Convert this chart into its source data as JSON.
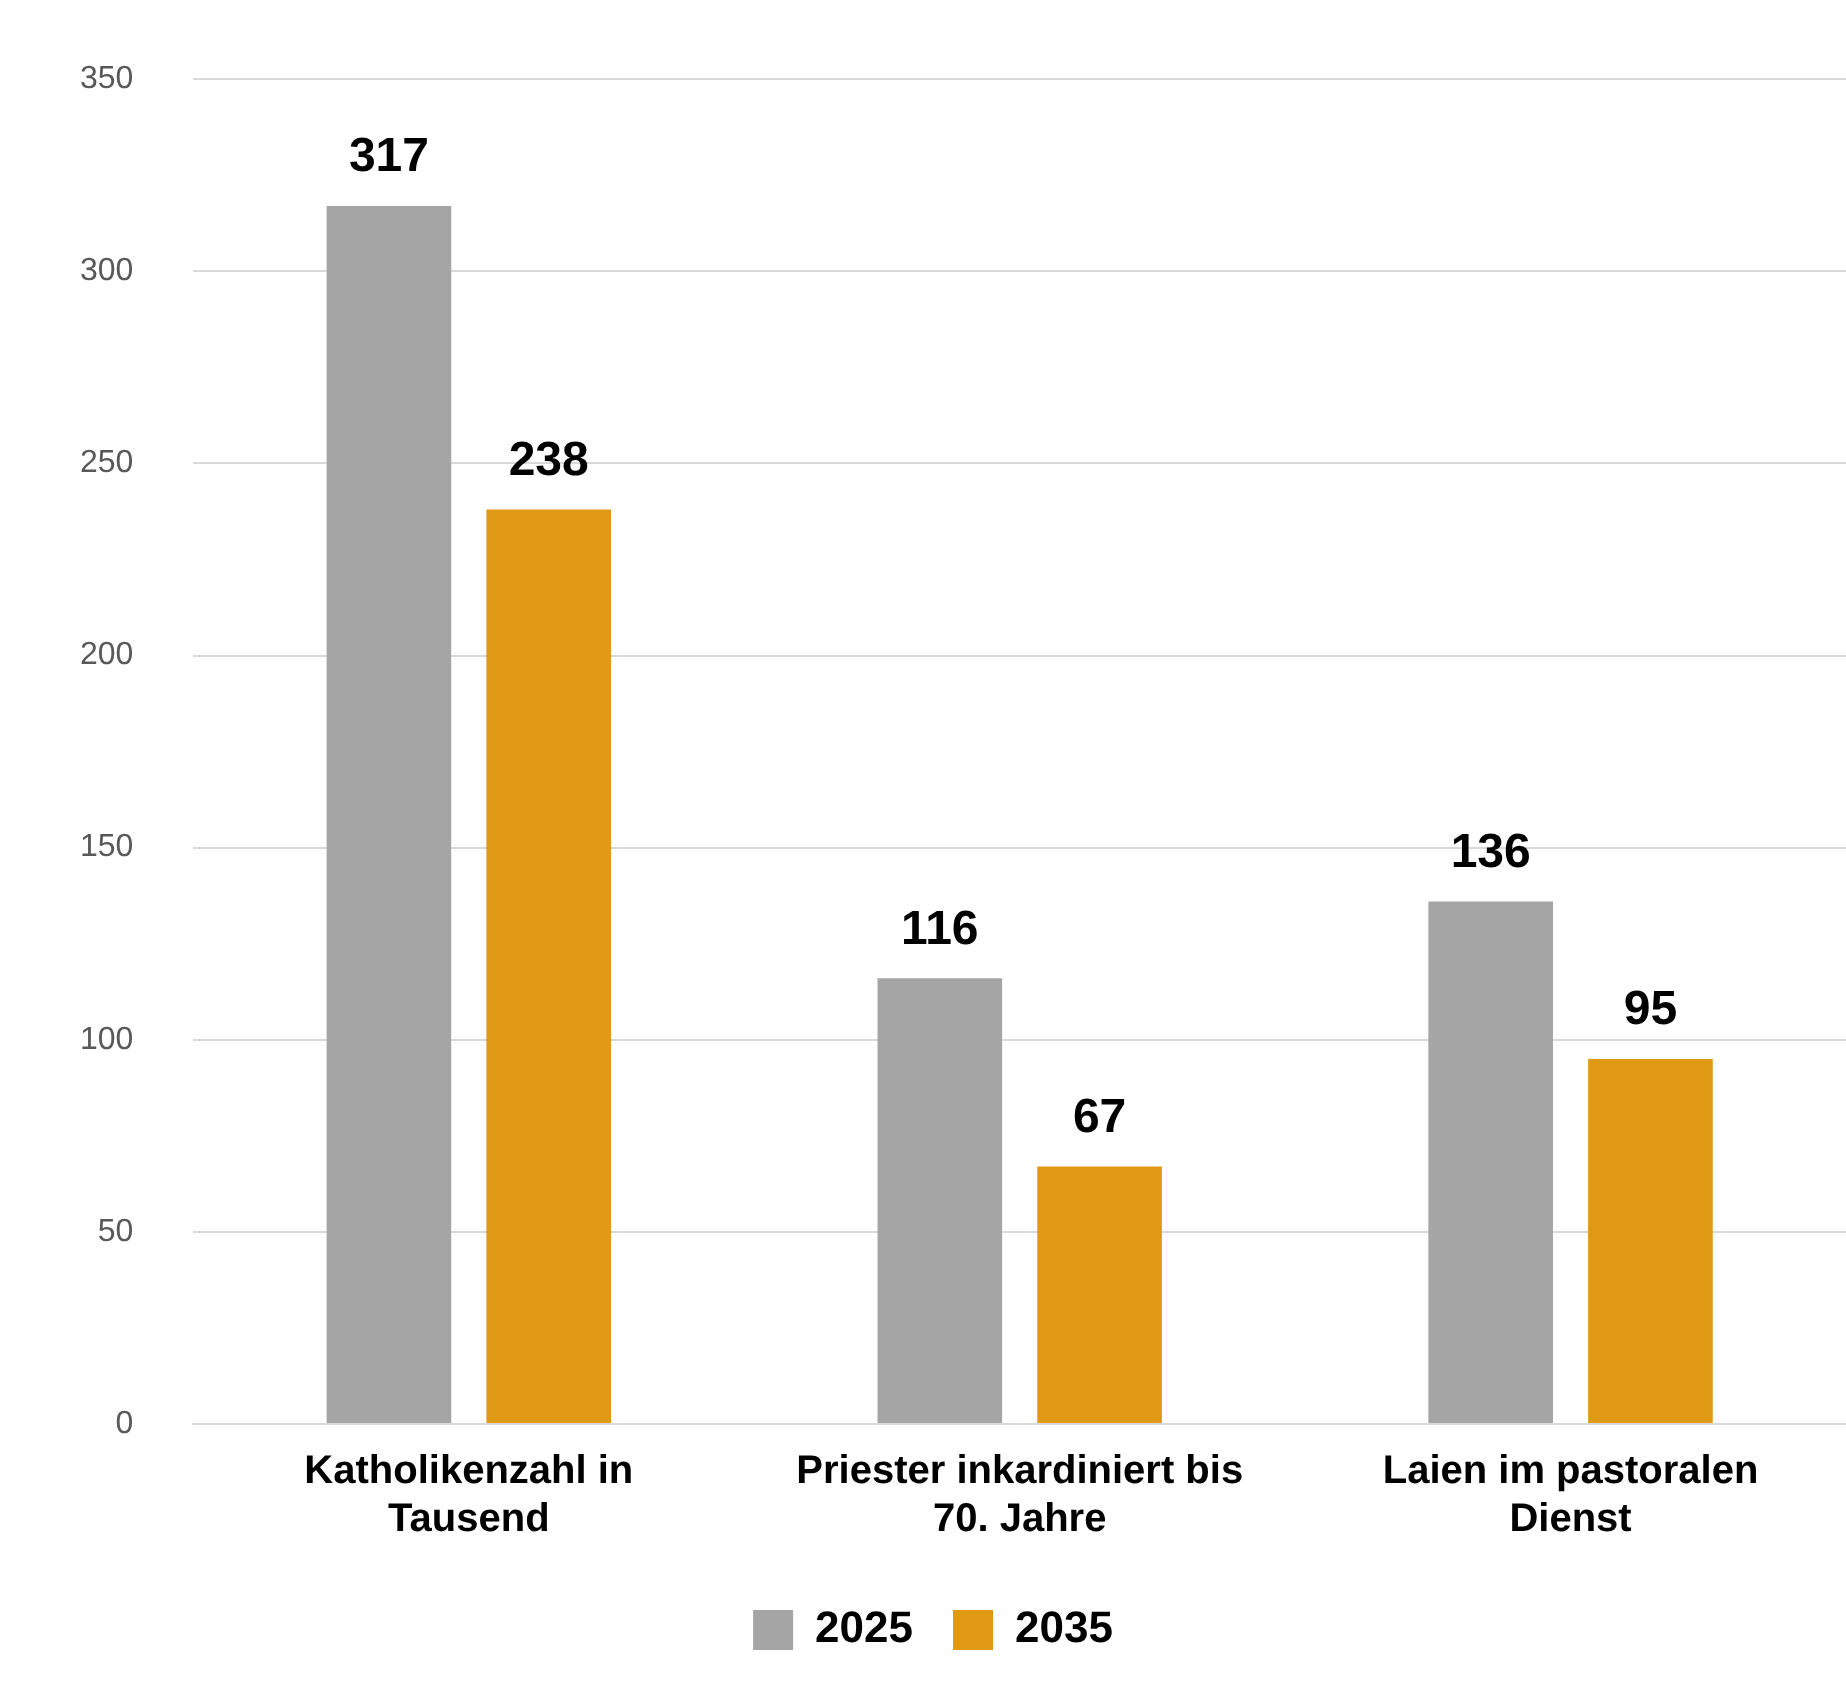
{
  "chart_data": {
    "type": "bar",
    "categories": [
      "Katholikenzahl in Tausend",
      "Priester inkardiniert bis 70. Jahre",
      "Laien im pastoralen Dienst"
    ],
    "series": [
      {
        "name": "2025",
        "color": "#a5a5a5",
        "values": [
          317,
          116,
          136
        ]
      },
      {
        "name": "2035",
        "color": "#e09914",
        "values": [
          238,
          67,
          95
        ]
      }
    ],
    "ylim": [
      0,
      350
    ],
    "yticks": [
      0,
      50,
      100,
      150,
      200,
      250,
      300,
      350
    ],
    "grid": "y",
    "legend": "bottom",
    "data_labels": true
  }
}
